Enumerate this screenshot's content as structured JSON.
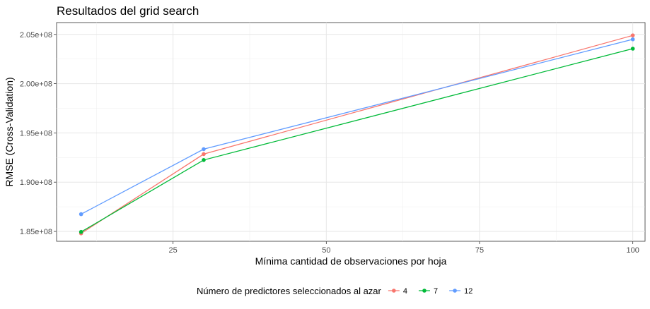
{
  "chart_data": {
    "type": "line",
    "title": "Resultados del grid search",
    "xlabel": "Mínima cantidad de observaciones por hoja",
    "ylabel": "RMSE (Cross-Validation)",
    "xlim": [
      6,
      102
    ],
    "ylim": [
      184000000,
      206200000
    ],
    "x_ticks": [
      25,
      50,
      75,
      100
    ],
    "x_tick_labels": [
      "25",
      "50",
      "75",
      "100"
    ],
    "y_ticks": [
      185000000,
      190000000,
      195000000,
      200000000,
      205000000
    ],
    "y_tick_labels": [
      "1.85e+08",
      "1.90e+08",
      "1.95e+08",
      "2.00e+08",
      "2.05e+08"
    ],
    "grid": true,
    "legend_title": "Número de predictores seleccionados al azar",
    "legend_position": "bottom",
    "series": [
      {
        "name": "4",
        "color": "#F8766D",
        "x": [
          10,
          30,
          100
        ],
        "y": [
          184800000,
          192850000,
          204900000
        ]
      },
      {
        "name": "7",
        "color": "#00BA38",
        "x": [
          10,
          30,
          100
        ],
        "y": [
          184950000,
          192250000,
          203550000
        ]
      },
      {
        "name": "12",
        "color": "#619CFF",
        "x": [
          10,
          30,
          100
        ],
        "y": [
          186750000,
          193350000,
          204500000
        ]
      }
    ]
  }
}
